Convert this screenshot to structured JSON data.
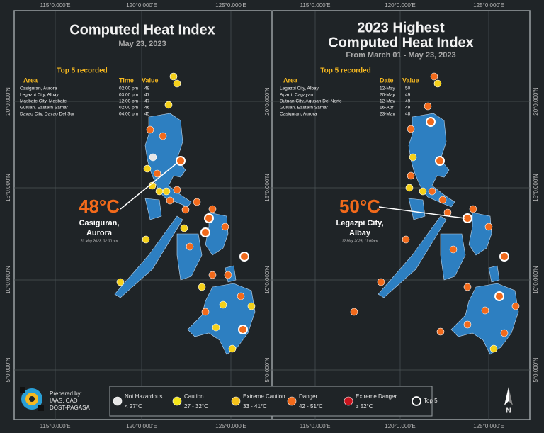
{
  "axes": {
    "lon_labels": [
      "115°0.000'E",
      "120°0.000'E",
      "125°0.000'E"
    ],
    "lat_labels": [
      "20°0.000'N",
      "15°0.000'N",
      "10°0.000'N",
      "5°0.000'N"
    ]
  },
  "left_panel": {
    "title": "Computed Heat Index",
    "subtitle": "May 23, 2023",
    "top5_heading": "Top 5 recorded",
    "table": {
      "headers": [
        "Area",
        "Time",
        "Value"
      ],
      "rows": [
        [
          "Casiguran, Aurora",
          "02:00 pm",
          48
        ],
        [
          "Legazpi City, Albay",
          "03:00 pm",
          47
        ],
        [
          "Masbate City, Masbate",
          "12:00 pm",
          47
        ],
        [
          "Guiuan, Eastern Samar",
          "02:00 pm",
          46
        ],
        [
          "Davao City, Davao Del Sur",
          "04:00 pm",
          45
        ]
      ]
    },
    "callout": {
      "value": "48°C",
      "place": [
        "Casiguran,",
        "Aurora"
      ],
      "note": "23 May 2023, 02:00 pm"
    }
  },
  "right_panel": {
    "title": [
      "2023 Highest",
      "Computed Heat Index"
    ],
    "subtitle": "From March 01 - May 23, 2023",
    "top5_heading": "Top 5 recorded",
    "table": {
      "headers": [
        "Area",
        "Date",
        "Value"
      ],
      "rows": [
        [
          "Legazpi City, Albay",
          "12-May",
          50
        ],
        [
          "Aparri, Cagayan",
          "20-May",
          49
        ],
        [
          "Butuan City, Agusan Del Norte",
          "12-May",
          49
        ],
        [
          "Guiuan, Eastern Samar",
          "16-Apr",
          49
        ],
        [
          "Casiguran, Aurora",
          "23-May",
          48
        ]
      ]
    },
    "callout": {
      "value": "50°C",
      "place": [
        "Legazpi City,",
        "Albay"
      ],
      "note": "12 May 2023, 11:00am"
    }
  },
  "legend": {
    "items": [
      {
        "label": "Not Hazardous",
        "range": "< 27°C",
        "color": "#e6e6e6"
      },
      {
        "label": "Caution",
        "range": "27 - 32°C",
        "color": "#f5e61a"
      },
      {
        "label": "Extreme Caution",
        "range": "33 - 41°C",
        "color": "#f5c21a"
      },
      {
        "label": "Danger",
        "range": "42 - 51°C",
        "color": "#f26a1b"
      },
      {
        "label": "Extreme Danger",
        "range": "≥ 52°C",
        "color": "#c8141e"
      }
    ],
    "top5": "Top 5"
  },
  "credits": [
    "Prepared by:",
    "IAAS, CAD",
    "DOST-PAGASA"
  ],
  "north": "N"
}
